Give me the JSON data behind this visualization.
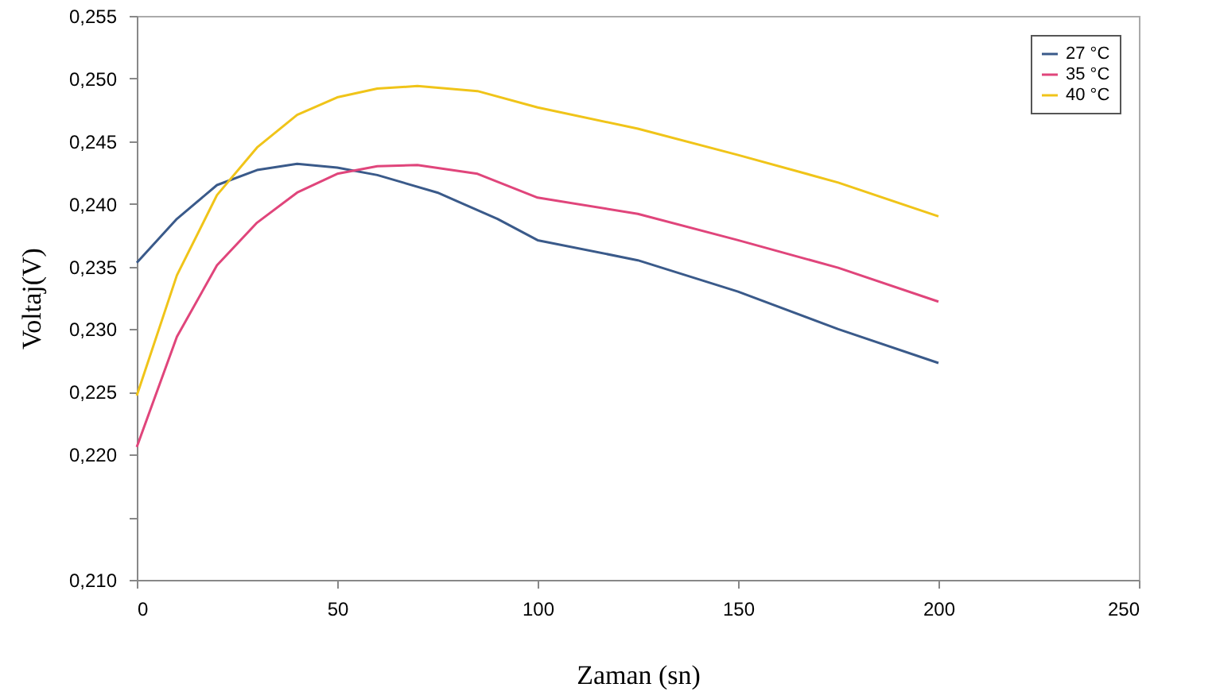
{
  "chart_data": {
    "type": "line",
    "xlabel": "Zaman (sn)",
    "ylabel": "Voltaj(V)",
    "x": [
      0,
      10,
      20,
      30,
      40,
      50,
      60,
      75,
      90,
      100,
      125,
      150,
      175,
      200
    ],
    "series": [
      {
        "name": "27 °C",
        "color": "#3a5a8a",
        "values": [
          0.2353,
          0.2388,
          0.2415,
          0.2427,
          0.2432,
          0.2429,
          0.2423,
          0.2409,
          0.2388,
          0.2371,
          0.2355,
          0.233,
          0.23,
          0.2273
        ]
      },
      {
        "name": "35 °C",
        "color": "#e0457b",
        "x": [
          0,
          10,
          20,
          30,
          40,
          50,
          60,
          70,
          85,
          100,
          125,
          150,
          175,
          200
        ],
        "values": [
          0.2206,
          0.2294,
          0.2351,
          0.2385,
          0.2409,
          0.2424,
          0.243,
          0.2431,
          0.2424,
          0.2405,
          0.2392,
          0.2371,
          0.2349,
          0.2322
        ]
      },
      {
        "name": "40 °C",
        "color": "#f0c419",
        "x": [
          0,
          10,
          20,
          30,
          40,
          50,
          60,
          70,
          85,
          100,
          125,
          150,
          175,
          200
        ],
        "values": [
          0.2247,
          0.2343,
          0.2407,
          0.2445,
          0.2471,
          0.2485,
          0.2492,
          0.2494,
          0.249,
          0.2477,
          0.246,
          0.2439,
          0.2417,
          0.239
        ]
      }
    ],
    "xlim": [
      0,
      250
    ],
    "xticks": [
      0,
      50,
      100,
      150,
      200,
      250
    ],
    "ylim": [
      0.21,
      0.255
    ],
    "yticks": [
      {
        "value": 0.21,
        "label": "0,210"
      },
      {
        "value": 0.215,
        "label": null
      },
      {
        "value": 0.22,
        "label": "0,220"
      },
      {
        "value": 0.225,
        "label": "0,225"
      },
      {
        "value": 0.23,
        "label": "0,230"
      },
      {
        "value": 0.235,
        "label": "0,235"
      },
      {
        "value": 0.24,
        "label": "0,240"
      },
      {
        "value": 0.245,
        "label": "0,245"
      },
      {
        "value": 0.25,
        "label": "0,250"
      },
      {
        "value": 0.255,
        "label": "0,255"
      }
    ],
    "legend": "top right",
    "marker": "none",
    "line_style": "solid"
  }
}
